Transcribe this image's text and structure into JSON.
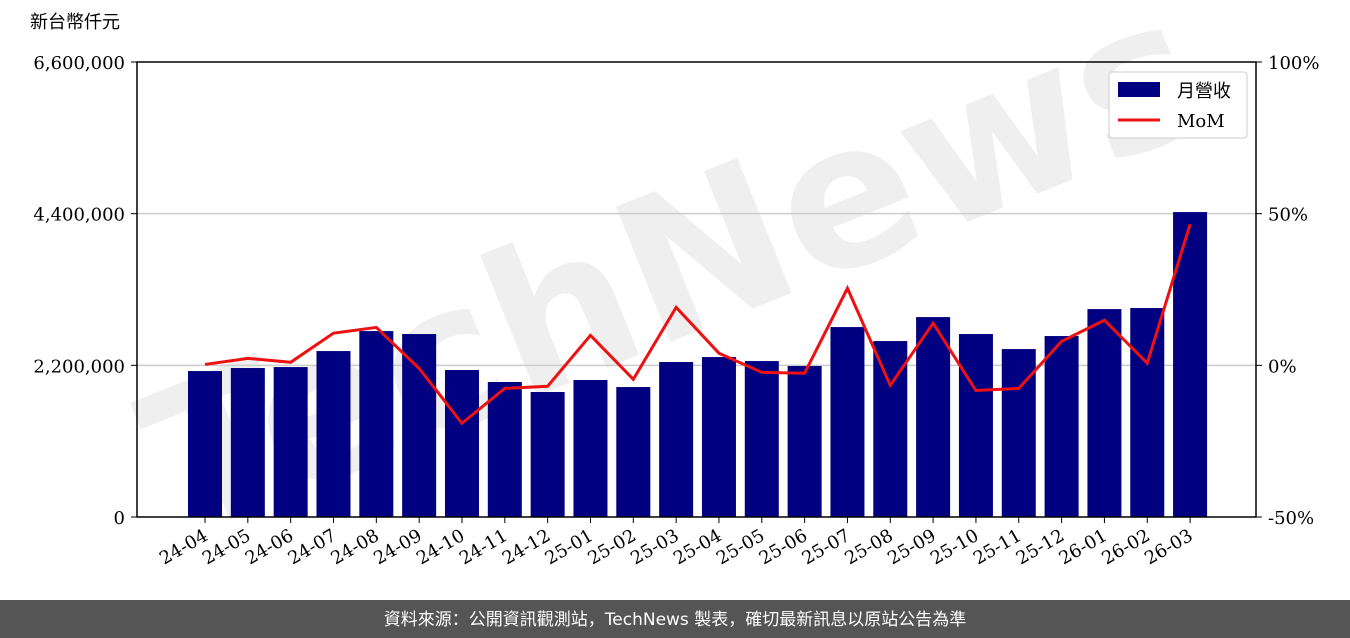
{
  "chart_data": {
    "type": "bar-line",
    "y_axis_label": "新台幣仟元",
    "watermark": "TechNews",
    "footer": "資料來源：公開資訊觀測站，TechNews 製表，確切最新訊息以原站公告為準",
    "categories": [
      "24-04",
      "24-05",
      "24-06",
      "24-07",
      "24-08",
      "24-09",
      "24-10",
      "24-11",
      "24-12",
      "25-01",
      "25-02",
      "25-03",
      "25-04",
      "25-05",
      "25-06",
      "25-07",
      "25-08",
      "25-09",
      "25-10",
      "25-11",
      "25-12",
      "26-01",
      "26-02",
      "26-03"
    ],
    "series": [
      {
        "name": "月營收",
        "type": "bar",
        "color": "#000080",
        "values": [
          2117000,
          2161000,
          2175000,
          2407000,
          2697000,
          2654000,
          2132000,
          1958000,
          1813000,
          1987000,
          1885000,
          2248000,
          2320000,
          2262000,
          2190000,
          2755000,
          2552000,
          2900000,
          2654000,
          2436000,
          2625000,
          3016000,
          3031000,
          4423000
        ]
      },
      {
        "name": "MoM",
        "type": "line",
        "axis": "y2",
        "color": "#ee1111",
        "values": [
          0.3,
          2.3,
          1.0,
          10.6,
          12.5,
          -1.0,
          -19.1,
          -7.6,
          -6.9,
          9.9,
          -4.6,
          19.1,
          4.0,
          -2.3,
          -2.6,
          25.4,
          -6.6,
          13.9,
          -8.3,
          -7.6,
          7.9,
          14.9,
          0.7,
          46.5
        ]
      }
    ],
    "ylim": [
      0,
      6600000
    ],
    "yticks": [
      0,
      {
        "value": 2200000,
        "label": "2,200,000"
      },
      {
        "value": 4400000,
        "label": "4,400,000"
      },
      {
        "value": 6600000,
        "label": "6,600,000"
      }
    ],
    "y2lim": [
      -50,
      100
    ],
    "y2ticks": [
      {
        "value": -50,
        "label": "-50%"
      },
      {
        "value": 0,
        "label": "0%"
      },
      {
        "value": 50,
        "label": "50%"
      },
      {
        "value": 100,
        "label": "100%"
      }
    ],
    "grid": true,
    "legend": "upper right"
  }
}
